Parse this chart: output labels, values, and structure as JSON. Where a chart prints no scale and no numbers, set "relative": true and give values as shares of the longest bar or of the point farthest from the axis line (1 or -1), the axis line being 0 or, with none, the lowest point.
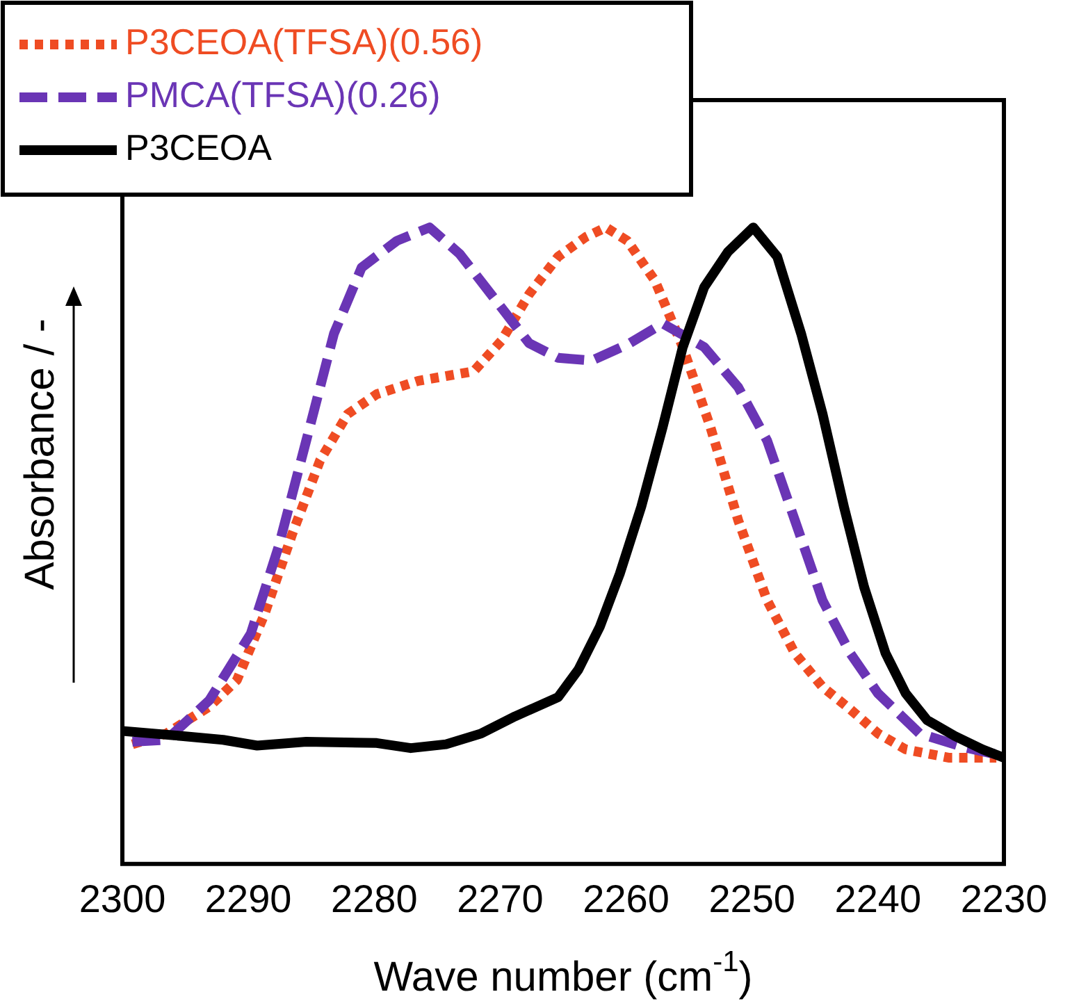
{
  "chart_data": {
    "type": "line",
    "relative": true,
    "xlabel": "Wave number (cm$^{-1}$)",
    "ylabel": "Absorbance / -",
    "xlim": [
      2300,
      2230
    ],
    "xticks": [
      2300,
      2290,
      2280,
      2270,
      2260,
      2250,
      2240,
      2230
    ],
    "legend": "top left",
    "grid": false,
    "marker": "none",
    "series": [
      {
        "name": "P3CEOA(TFSA)(0.56)",
        "color": "#ef4c23",
        "line_style": "dotted",
        "x": [
          2299.2,
          2296.5,
          2293.1,
          2290.9,
          2288.7,
          2286.5,
          2284.3,
          2282.1,
          2279.8,
          2276.5,
          2272.1,
          2269.9,
          2267.7,
          2265.4,
          2263.2,
          2261.6,
          2259.9,
          2257.7,
          2255.5,
          2253.3,
          2251.1,
          2248.8,
          2246.6,
          2244.4,
          2242.2,
          2240.0,
          2237.8,
          2234.4,
          2230.6
        ],
        "values": [
          0.188,
          0.205,
          0.247,
          0.289,
          0.393,
          0.519,
          0.634,
          0.707,
          0.738,
          0.759,
          0.774,
          0.822,
          0.895,
          0.954,
          0.985,
          1.0,
          0.979,
          0.916,
          0.812,
          0.686,
          0.54,
          0.414,
          0.331,
          0.278,
          0.243,
          0.205,
          0.18,
          0.167,
          0.167
        ]
      },
      {
        "name": "PMCA(TFSA)(0.26)",
        "color": "#6a35b5",
        "line_style": "dashed",
        "x": [
          2299.2,
          2296.5,
          2293.1,
          2289.8,
          2287.6,
          2285.4,
          2283.2,
          2281.0,
          2278.2,
          2275.6,
          2273.2,
          2269.9,
          2267.7,
          2265.4,
          2262.7,
          2259.9,
          2257.1,
          2253.8,
          2251.1,
          2248.8,
          2246.6,
          2244.4,
          2242.2,
          2240.0,
          2236.7,
          2233.3,
          2230.6
        ],
        "values": [
          0.192,
          0.195,
          0.257,
          0.362,
          0.498,
          0.665,
          0.833,
          0.937,
          0.979,
          1.0,
          0.958,
          0.874,
          0.818,
          0.795,
          0.791,
          0.816,
          0.849,
          0.812,
          0.749,
          0.665,
          0.54,
          0.414,
          0.331,
          0.268,
          0.205,
          0.184,
          0.172
        ]
      },
      {
        "name": "P3CEOA",
        "color": "#000000",
        "line_style": "solid",
        "x": [
          2300,
          2295.3,
          2292,
          2289.3,
          2285.4,
          2279.8,
          2277.1,
          2274.3,
          2271.5,
          2268.8,
          2265.4,
          2263.8,
          2262.1,
          2260.5,
          2258.8,
          2257.1,
          2255.5,
          2253.8,
          2251.9,
          2249.9,
          2248.0,
          2246.1,
          2244.4,
          2242.7,
          2241.1,
          2239.4,
          2237.8,
          2236.1,
          2233.9,
          2231.7,
          2230.0
        ],
        "values": [
          0.209,
          0.201,
          0.195,
          0.186,
          0.192,
          0.19,
          0.182,
          0.188,
          0.205,
          0.232,
          0.262,
          0.305,
          0.372,
          0.456,
          0.561,
          0.686,
          0.812,
          0.906,
          0.962,
          1.0,
          0.954,
          0.833,
          0.707,
          0.561,
          0.435,
          0.331,
          0.268,
          0.226,
          0.201,
          0.18,
          0.167
        ]
      }
    ]
  }
}
